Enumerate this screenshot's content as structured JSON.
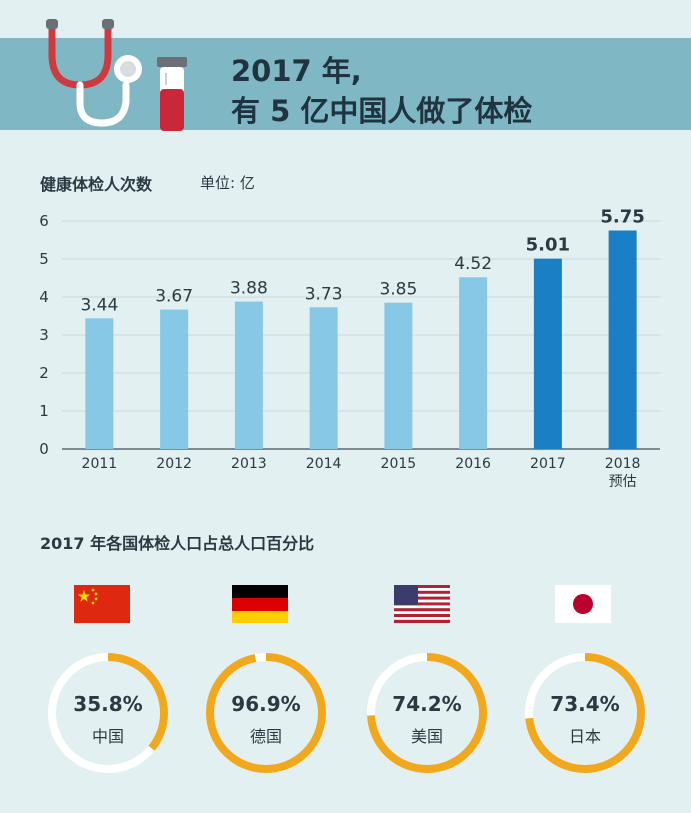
{
  "header": {
    "title_line1": "2017 年,",
    "title_line2": "有 5 亿中国人做了体检"
  },
  "bar_section": {
    "title": "健康体检人次数",
    "unit": "单位: 亿"
  },
  "ring_section": {
    "title": "2017 年各国体检人口占总人口百分比"
  },
  "colors": {
    "banner": "#7fb8c4",
    "bar_light": "#86c8e6",
    "bar_dark": "#1a7fc4",
    "ring_fill": "#f2a81d",
    "ring_track": "#ffffff",
    "background": "#e3f0f1"
  },
  "chart_data": [
    {
      "type": "bar",
      "title": "健康体检人次数",
      "ylabel": "单位: 亿",
      "categories": [
        "2011",
        "2012",
        "2013",
        "2014",
        "2015",
        "2016",
        "2017",
        "2018"
      ],
      "sub_labels": [
        "",
        "",
        "",
        "",
        "",
        "",
        "",
        "预估"
      ],
      "values": [
        3.44,
        3.67,
        3.88,
        3.73,
        3.85,
        4.52,
        5.01,
        5.75
      ],
      "value_labels": [
        "3.44",
        "3.67",
        "3.88",
        "3.73",
        "3.85",
        "4.52",
        "5.01",
        "5.75"
      ],
      "highlight": [
        false,
        false,
        false,
        false,
        false,
        false,
        true,
        true
      ],
      "yticks": [
        "0",
        "1",
        "2",
        "3",
        "4",
        "5",
        "6"
      ],
      "ylim": [
        0,
        6
      ],
      "grid": true
    },
    {
      "type": "pie",
      "title": "2017 年各国体检人口占总人口百分比",
      "items": [
        {
          "country": "中国",
          "flag": "china-flag-icon",
          "percent": 35.8,
          "label": "35.8%"
        },
        {
          "country": "德国",
          "flag": "germany-flag-icon",
          "percent": 96.9,
          "label": "96.9%"
        },
        {
          "country": "美国",
          "flag": "usa-flag-icon",
          "percent": 74.2,
          "label": "74.2%"
        },
        {
          "country": "日本",
          "flag": "japan-flag-icon",
          "percent": 73.4,
          "label": "73.4%"
        }
      ]
    }
  ]
}
